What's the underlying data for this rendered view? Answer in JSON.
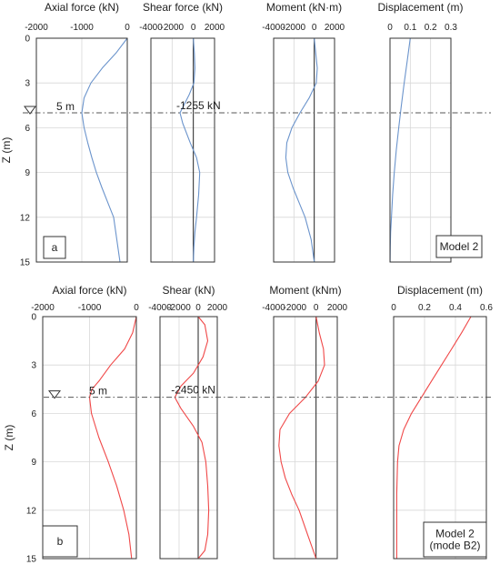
{
  "chart_data": [
    {
      "type": "line",
      "ylabel": "Z (m)",
      "yticks": [
        0,
        3,
        6,
        9,
        12,
        15
      ],
      "ylim": [
        0,
        15
      ],
      "water_level": {
        "depth": 5,
        "label": "5 m"
      },
      "panel_label": "a",
      "model_label": [
        "Model 2"
      ],
      "line_color": "#6b94cc",
      "panels": [
        {
          "title": "Axial force (kN)",
          "xlim": [
            -2000,
            0
          ],
          "xticks": [
            -2000,
            -1000,
            0
          ],
          "xtick_labels": [
            "-2000",
            "-1000",
            "0"
          ],
          "x": [
            0,
            -250,
            -550,
            -800,
            -950,
            -1000,
            -950,
            -870,
            -780,
            -680,
            -560,
            -430,
            -300,
            -160
          ],
          "z": [
            0,
            1,
            2,
            3,
            4,
            5,
            6,
            7,
            8,
            9,
            10,
            11,
            12,
            15
          ]
        },
        {
          "title": "Shear force (kN)",
          "xlim": [
            -4000,
            2000
          ],
          "xticks": [
            -4000,
            -2000,
            0,
            2000
          ],
          "xtick_labels": [
            "-4000",
            "-2000",
            "0",
            "2000"
          ],
          "annotation": {
            "text": "-1255 kN",
            "x": -1255,
            "z": 5
          },
          "x": [
            0,
            100,
            150,
            50,
            -400,
            -900,
            -1255,
            -1000,
            -300,
            300,
            600,
            500,
            300,
            150,
            50,
            0
          ],
          "z": [
            0,
            1,
            2,
            3,
            3.8,
            4.5,
            5,
            5.7,
            7,
            8,
            9,
            10.5,
            12,
            13,
            14,
            15
          ]
        },
        {
          "title": "Moment (kN·m)",
          "xlim": [
            -4000,
            2000
          ],
          "xticks": [
            -4000,
            -2000,
            0,
            2000
          ],
          "xtick_labels": [
            "-4000",
            "-2000",
            "0",
            "2000"
          ],
          "x": [
            0,
            150,
            300,
            200,
            -500,
            -1400,
            -2200,
            -2700,
            -2800,
            -2600,
            -2100,
            -1500,
            -900,
            -300,
            0
          ],
          "z": [
            0,
            1,
            2,
            3,
            4,
            5,
            6,
            7,
            8,
            9,
            10,
            11,
            12,
            13.5,
            15
          ]
        },
        {
          "title": "Displacement (m)",
          "xlim": [
            0,
            0.3
          ],
          "xticks": [
            0,
            0.1,
            0.2,
            0.3
          ],
          "xtick_labels": [
            "0",
            "0.1",
            "0.2",
            "0.3"
          ],
          "x": [
            0.1,
            0.085,
            0.07,
            0.056,
            0.043,
            0.031,
            0.021,
            0.013,
            0.007,
            0.003,
            0.0015,
            0.0005
          ],
          "z": [
            0,
            1.5,
            3,
            4.5,
            6,
            7.5,
            9,
            10.5,
            12,
            13,
            14,
            15
          ]
        }
      ]
    },
    {
      "type": "line",
      "ylabel": "Z (m)",
      "yticks": [
        0,
        3,
        6,
        9,
        12,
        15
      ],
      "ylim": [
        0,
        15
      ],
      "water_level": {
        "depth": 5,
        "label": "5 m"
      },
      "panel_label": "b",
      "model_label": [
        "Model 2",
        "(mode B2)"
      ],
      "line_color": "#f04848",
      "panels": [
        {
          "title": "Axial force (kN)",
          "xlim": [
            -2000,
            0
          ],
          "xticks": [
            -2000,
            -1000,
            0
          ],
          "xtick_labels": [
            "-2000",
            "-1000",
            "0"
          ],
          "x": [
            0,
            -80,
            -250,
            -550,
            -800,
            -950,
            -1000,
            -960,
            -800,
            -600,
            -420,
            -270,
            -160,
            -100
          ],
          "z": [
            0,
            1,
            2,
            3,
            4,
            4.5,
            5,
            6,
            7.5,
            9,
            10.5,
            12,
            13.5,
            15
          ]
        },
        {
          "title": "Shear (kN)",
          "xlim": [
            -4000,
            2000
          ],
          "xticks": [
            -4000,
            -2000,
            0,
            2000
          ],
          "xtick_labels": [
            "-4000",
            "-2000",
            "0",
            "2000"
          ],
          "annotation": {
            "text": "-2450 kN",
            "x": -2450,
            "z": 5
          },
          "x": [
            0,
            700,
            1000,
            500,
            -500,
            -1800,
            -2450,
            -1800,
            -500,
            400,
            800,
            1000,
            1100,
            1000,
            700,
            0
          ],
          "z": [
            0,
            0.5,
            1.5,
            2.5,
            3.5,
            4.3,
            5,
            5.7,
            6.8,
            7.8,
            9,
            10.5,
            12,
            13.5,
            14.5,
            15
          ]
        },
        {
          "title": "Moment (kNm)",
          "xlim": [
            -4000,
            2000
          ],
          "xticks": [
            -4000,
            -2000,
            0,
            2000
          ],
          "xtick_labels": [
            "-4000",
            "-2000",
            "0",
            "2000"
          ],
          "x": [
            0,
            300,
            700,
            800,
            200,
            -1000,
            -2500,
            -3400,
            -3500,
            -3300,
            -2900,
            -2300,
            -1600,
            -800,
            0
          ],
          "z": [
            0,
            1,
            2,
            3,
            4,
            5,
            6,
            7,
            8,
            9,
            10,
            11,
            12,
            13.5,
            15
          ]
        },
        {
          "title": "Displacement (m)",
          "xlim": [
            0,
            0.6
          ],
          "xticks": [
            0,
            0.2,
            0.4,
            0.6
          ],
          "xtick_labels": [
            "0",
            "0.2",
            "0.4",
            "0.6"
          ],
          "x": [
            0.5,
            0.44,
            0.375,
            0.31,
            0.245,
            0.18,
            0.115,
            0.065,
            0.035,
            0.025,
            0.02,
            0.02
          ],
          "z": [
            0,
            1,
            2,
            3,
            4,
            5,
            6,
            7,
            8,
            9,
            11,
            15
          ]
        }
      ]
    }
  ]
}
